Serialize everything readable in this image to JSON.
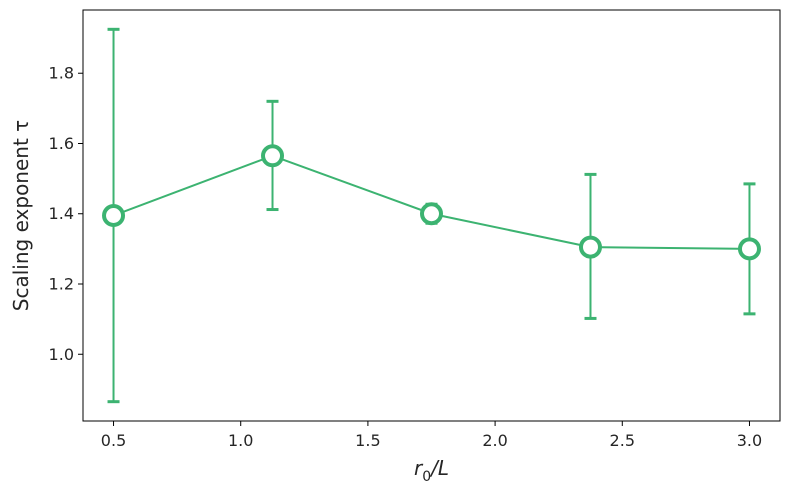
{
  "chart_data": {
    "type": "line",
    "x": [
      0.5,
      1.125,
      1.75,
      2.375,
      3.0
    ],
    "series": [
      {
        "values": [
          1.395,
          1.565,
          1.4,
          1.305,
          1.3
        ],
        "err_low": [
          0.865,
          1.412,
          1.373,
          1.102,
          1.115
        ],
        "err_high": [
          1.925,
          1.72,
          1.427,
          1.512,
          1.485
        ],
        "color": "#3cb371"
      }
    ],
    "xlabel_main": "r",
    "xlabel_sub": "0",
    "xlabel_rest": "/L",
    "ylabel": "Scaling exponent τ",
    "xlim": [
      0.38,
      3.12
    ],
    "ylim": [
      0.81,
      1.98
    ],
    "xticks": [
      0.5,
      1.0,
      1.5,
      2.0,
      2.5,
      3.0
    ],
    "xtick_labels": [
      "0.5",
      "1.0",
      "1.5",
      "2.0",
      "2.5",
      "3.0"
    ],
    "yticks": [
      1.0,
      1.2,
      1.4,
      1.6,
      1.8
    ],
    "ytick_labels": [
      "1.0",
      "1.2",
      "1.4",
      "1.6",
      "1.8"
    ],
    "grid": false,
    "legend": "none"
  }
}
